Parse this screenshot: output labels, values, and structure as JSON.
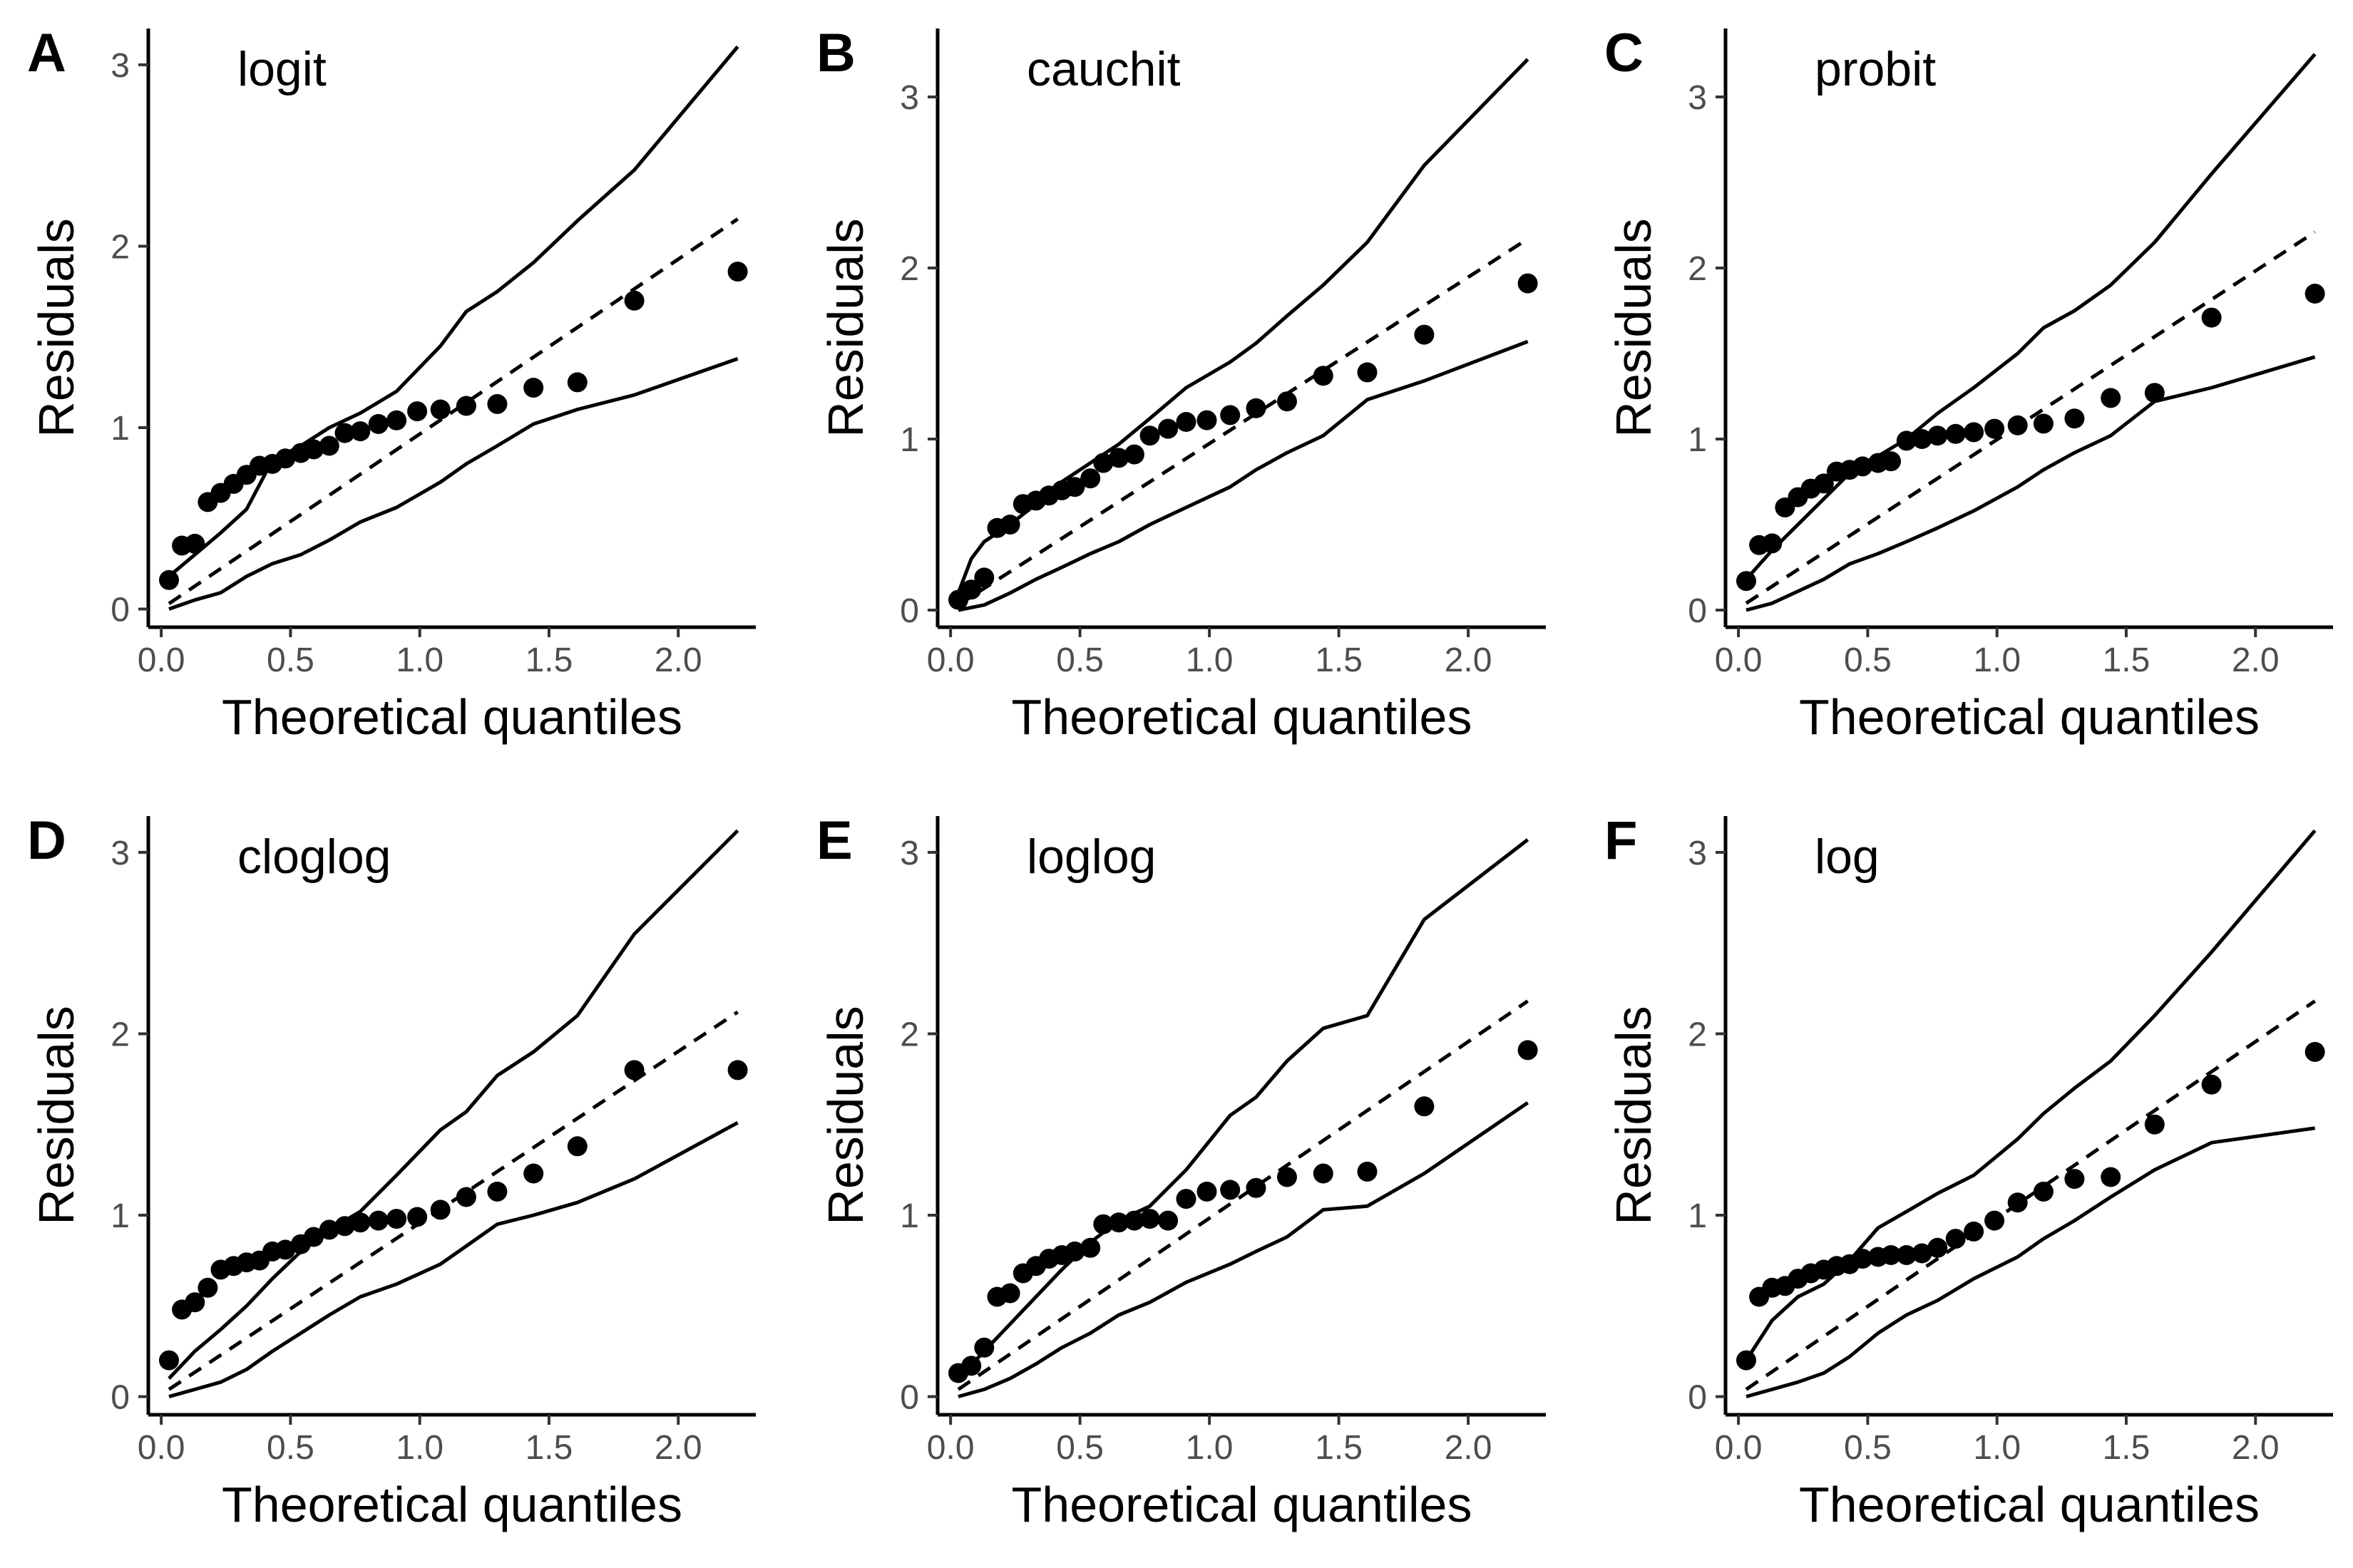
{
  "figure": {
    "xlabel": "Theoretical quantiles",
    "ylabel": "Residuals"
  },
  "chart_data": [
    {
      "type": "scatter",
      "panel": "A",
      "annotation": "logit",
      "xlabel": "Theoretical quantiles",
      "ylabel": "Residuals",
      "xlim": [
        -0.05,
        2.3
      ],
      "ylim": [
        -0.1,
        3.2
      ],
      "xticks": [
        "0.0",
        "0.5",
        "1.0",
        "1.5",
        "2.0"
      ],
      "yticks": [
        "0",
        "1",
        "2",
        "3"
      ],
      "grid": false,
      "points": {
        "x": [
          0.03,
          0.08,
          0.13,
          0.18,
          0.23,
          0.28,
          0.33,
          0.38,
          0.43,
          0.48,
          0.54,
          0.59,
          0.65,
          0.71,
          0.77,
          0.84,
          0.91,
          0.99,
          1.08,
          1.18,
          1.3,
          1.44,
          1.61,
          1.83,
          2.23
        ],
        "y": [
          0.16,
          0.35,
          0.36,
          0.59,
          0.64,
          0.69,
          0.74,
          0.79,
          0.8,
          0.83,
          0.86,
          0.88,
          0.9,
          0.97,
          0.98,
          1.02,
          1.04,
          1.09,
          1.1,
          1.12,
          1.13,
          1.22,
          1.25,
          1.7,
          1.86
        ]
      },
      "reference_line": {
        "x": [
          0.03,
          2.23
        ],
        "y": [
          0.03,
          2.15
        ]
      },
      "upper_envelope": {
        "x": [
          0.03,
          0.13,
          0.23,
          0.33,
          0.43,
          0.54,
          0.65,
          0.77,
          0.91,
          1.08,
          1.18,
          1.3,
          1.44,
          1.61,
          1.83,
          2.23
        ],
        "y": [
          0.18,
          0.3,
          0.42,
          0.55,
          0.82,
          0.9,
          1.0,
          1.08,
          1.2,
          1.45,
          1.64,
          1.75,
          1.91,
          2.14,
          2.42,
          3.1
        ]
      },
      "lower_envelope": {
        "x": [
          0.03,
          0.13,
          0.23,
          0.33,
          0.43,
          0.54,
          0.65,
          0.77,
          0.91,
          1.08,
          1.18,
          1.3,
          1.44,
          1.61,
          1.83,
          2.23
        ],
        "y": [
          0.0,
          0.05,
          0.09,
          0.18,
          0.25,
          0.3,
          0.38,
          0.48,
          0.56,
          0.7,
          0.8,
          0.9,
          1.02,
          1.1,
          1.18,
          1.38
        ]
      }
    },
    {
      "type": "scatter",
      "panel": "B",
      "annotation": "cauchit",
      "xlabel": "Theoretical quantiles",
      "ylabel": "Residuals",
      "xlim": [
        -0.05,
        2.3
      ],
      "ylim": [
        -0.1,
        3.4
      ],
      "xticks": [
        "0.0",
        "0.5",
        "1.0",
        "1.5",
        "2.0"
      ],
      "yticks": [
        "0",
        "1",
        "2",
        "3"
      ],
      "grid": false,
      "points": {
        "x": [
          0.03,
          0.08,
          0.13,
          0.18,
          0.23,
          0.28,
          0.33,
          0.38,
          0.43,
          0.48,
          0.54,
          0.59,
          0.65,
          0.71,
          0.77,
          0.84,
          0.91,
          0.99,
          1.08,
          1.18,
          1.3,
          1.44,
          1.61,
          1.83,
          2.23
        ],
        "y": [
          0.06,
          0.12,
          0.19,
          0.48,
          0.5,
          0.62,
          0.64,
          0.67,
          0.7,
          0.72,
          0.77,
          0.86,
          0.89,
          0.91,
          1.02,
          1.06,
          1.1,
          1.11,
          1.14,
          1.18,
          1.22,
          1.37,
          1.39,
          1.61,
          1.91
        ]
      },
      "reference_line": {
        "x": [
          0.03,
          2.23
        ],
        "y": [
          0.03,
          2.17
        ]
      },
      "upper_envelope": {
        "x": [
          0.03,
          0.08,
          0.13,
          0.23,
          0.33,
          0.43,
          0.54,
          0.65,
          0.77,
          0.91,
          1.08,
          1.18,
          1.3,
          1.44,
          1.61,
          1.83,
          2.23
        ],
        "y": [
          0.1,
          0.3,
          0.4,
          0.5,
          0.62,
          0.75,
          0.86,
          0.97,
          1.12,
          1.3,
          1.45,
          1.56,
          1.72,
          1.9,
          2.15,
          2.6,
          3.22
        ]
      },
      "lower_envelope": {
        "x": [
          0.03,
          0.13,
          0.23,
          0.33,
          0.43,
          0.54,
          0.65,
          0.77,
          0.91,
          1.08,
          1.18,
          1.3,
          1.44,
          1.61,
          1.83,
          2.23
        ],
        "y": [
          0.0,
          0.03,
          0.1,
          0.18,
          0.25,
          0.33,
          0.4,
          0.5,
          0.6,
          0.72,
          0.82,
          0.92,
          1.02,
          1.23,
          1.34,
          1.57
        ]
      }
    },
    {
      "type": "scatter",
      "panel": "C",
      "annotation": "probit",
      "xlabel": "Theoretical quantiles",
      "ylabel": "Residuals",
      "xlim": [
        -0.05,
        2.3
      ],
      "ylim": [
        -0.1,
        3.4
      ],
      "xticks": [
        "0.0",
        "0.5",
        "1.0",
        "1.5",
        "2.0"
      ],
      "yticks": [
        "0",
        "1",
        "2",
        "3"
      ],
      "grid": false,
      "points": {
        "x": [
          0.03,
          0.08,
          0.13,
          0.18,
          0.23,
          0.28,
          0.33,
          0.38,
          0.43,
          0.48,
          0.54,
          0.59,
          0.65,
          0.71,
          0.77,
          0.84,
          0.91,
          0.99,
          1.08,
          1.18,
          1.3,
          1.44,
          1.61,
          1.83,
          2.23
        ],
        "y": [
          0.17,
          0.38,
          0.39,
          0.6,
          0.66,
          0.71,
          0.74,
          0.81,
          0.82,
          0.84,
          0.86,
          0.87,
          0.99,
          1.0,
          1.02,
          1.03,
          1.04,
          1.06,
          1.08,
          1.09,
          1.12,
          1.24,
          1.27,
          1.71,
          1.85
        ]
      },
      "reference_line": {
        "x": [
          0.03,
          2.23
        ],
        "y": [
          0.04,
          2.21
        ]
      },
      "upper_envelope": {
        "x": [
          0.03,
          0.13,
          0.23,
          0.33,
          0.43,
          0.54,
          0.65,
          0.77,
          0.91,
          1.08,
          1.18,
          1.3,
          1.44,
          1.61,
          1.83,
          2.23
        ],
        "y": [
          0.18,
          0.35,
          0.5,
          0.65,
          0.8,
          0.9,
          1.0,
          1.15,
          1.3,
          1.5,
          1.65,
          1.75,
          1.9,
          2.15,
          2.55,
          3.25
        ]
      },
      "lower_envelope": {
        "x": [
          0.03,
          0.13,
          0.23,
          0.33,
          0.43,
          0.54,
          0.65,
          0.77,
          0.91,
          1.08,
          1.18,
          1.3,
          1.44,
          1.61,
          1.83,
          2.23
        ],
        "y": [
          0.0,
          0.04,
          0.11,
          0.18,
          0.27,
          0.33,
          0.4,
          0.48,
          0.58,
          0.72,
          0.82,
          0.92,
          1.02,
          1.22,
          1.3,
          1.48
        ]
      }
    },
    {
      "type": "scatter",
      "panel": "D",
      "annotation": "cloglog",
      "xlabel": "Theoretical quantiles",
      "ylabel": "Residuals",
      "xlim": [
        -0.05,
        2.3
      ],
      "ylim": [
        -0.1,
        3.2
      ],
      "xticks": [
        "0.0",
        "0.5",
        "1.0",
        "1.5",
        "2.0"
      ],
      "yticks": [
        "0",
        "1",
        "2",
        "3"
      ],
      "grid": false,
      "points": {
        "x": [
          0.03,
          0.08,
          0.13,
          0.18,
          0.23,
          0.28,
          0.33,
          0.38,
          0.43,
          0.48,
          0.54,
          0.59,
          0.65,
          0.71,
          0.77,
          0.84,
          0.91,
          0.99,
          1.08,
          1.18,
          1.3,
          1.44,
          1.61,
          1.83,
          2.23
        ],
        "y": [
          0.2,
          0.48,
          0.52,
          0.6,
          0.7,
          0.72,
          0.74,
          0.75,
          0.8,
          0.81,
          0.84,
          0.88,
          0.92,
          0.94,
          0.96,
          0.97,
          0.98,
          0.99,
          1.03,
          1.1,
          1.13,
          1.23,
          1.38,
          1.8,
          1.8
        ]
      },
      "reference_line": {
        "x": [
          0.03,
          2.23
        ],
        "y": [
          0.04,
          2.12
        ]
      },
      "upper_envelope": {
        "x": [
          0.03,
          0.13,
          0.23,
          0.33,
          0.43,
          0.54,
          0.65,
          0.77,
          0.91,
          1.08,
          1.18,
          1.3,
          1.44,
          1.61,
          1.83,
          2.23
        ],
        "y": [
          0.1,
          0.25,
          0.37,
          0.5,
          0.65,
          0.8,
          0.92,
          1.02,
          1.22,
          1.47,
          1.57,
          1.77,
          1.9,
          2.1,
          2.55,
          3.12
        ]
      },
      "lower_envelope": {
        "x": [
          0.03,
          0.13,
          0.23,
          0.33,
          0.43,
          0.54,
          0.65,
          0.77,
          0.91,
          1.08,
          1.18,
          1.3,
          1.44,
          1.61,
          1.83,
          2.23
        ],
        "y": [
          0.0,
          0.04,
          0.08,
          0.15,
          0.25,
          0.35,
          0.45,
          0.55,
          0.62,
          0.73,
          0.83,
          0.95,
          1.0,
          1.07,
          1.2,
          1.51
        ]
      }
    },
    {
      "type": "scatter",
      "panel": "E",
      "annotation": "loglog",
      "xlabel": "Theoretical quantiles",
      "ylabel": "Residuals",
      "xlim": [
        -0.05,
        2.3
      ],
      "ylim": [
        -0.1,
        3.2
      ],
      "xticks": [
        "0.0",
        "0.5",
        "1.0",
        "1.5",
        "2.0"
      ],
      "yticks": [
        "0",
        "1",
        "2",
        "3"
      ],
      "grid": false,
      "points": {
        "x": [
          0.03,
          0.08,
          0.13,
          0.18,
          0.23,
          0.28,
          0.33,
          0.38,
          0.43,
          0.48,
          0.54,
          0.59,
          0.65,
          0.71,
          0.77,
          0.84,
          0.91,
          0.99,
          1.08,
          1.18,
          1.3,
          1.44,
          1.61,
          1.83,
          2.23
        ],
        "y": [
          0.13,
          0.17,
          0.27,
          0.55,
          0.57,
          0.68,
          0.72,
          0.76,
          0.78,
          0.8,
          0.82,
          0.95,
          0.96,
          0.97,
          0.98,
          0.97,
          1.09,
          1.13,
          1.14,
          1.15,
          1.21,
          1.23,
          1.24,
          1.6,
          1.91
        ]
      },
      "reference_line": {
        "x": [
          0.03,
          2.23
        ],
        "y": [
          0.04,
          2.18
        ]
      },
      "upper_envelope": {
        "x": [
          0.03,
          0.13,
          0.23,
          0.33,
          0.43,
          0.54,
          0.65,
          0.77,
          0.91,
          1.08,
          1.18,
          1.3,
          1.44,
          1.61,
          1.83,
          2.23
        ],
        "y": [
          0.1,
          0.25,
          0.4,
          0.55,
          0.7,
          0.85,
          0.97,
          1.05,
          1.25,
          1.55,
          1.65,
          1.85,
          2.03,
          2.1,
          2.63,
          3.07
        ]
      },
      "lower_envelope": {
        "x": [
          0.03,
          0.13,
          0.23,
          0.33,
          0.43,
          0.54,
          0.65,
          0.77,
          0.91,
          1.08,
          1.18,
          1.3,
          1.44,
          1.61,
          1.83,
          2.23
        ],
        "y": [
          0.0,
          0.04,
          0.1,
          0.18,
          0.27,
          0.35,
          0.45,
          0.52,
          0.63,
          0.73,
          0.8,
          0.88,
          1.03,
          1.05,
          1.23,
          1.62
        ]
      }
    },
    {
      "type": "scatter",
      "panel": "F",
      "annotation": "log",
      "xlabel": "Theoretical quantiles",
      "ylabel": "Residuals",
      "xlim": [
        -0.05,
        2.3
      ],
      "ylim": [
        -0.1,
        3.2
      ],
      "xticks": [
        "0.0",
        "0.5",
        "1.0",
        "1.5",
        "2.0"
      ],
      "yticks": [
        "0",
        "1",
        "2",
        "3"
      ],
      "grid": false,
      "points": {
        "x": [
          0.03,
          0.08,
          0.13,
          0.18,
          0.23,
          0.28,
          0.33,
          0.38,
          0.43,
          0.48,
          0.54,
          0.59,
          0.65,
          0.71,
          0.77,
          0.84,
          0.91,
          0.99,
          1.08,
          1.18,
          1.3,
          1.44,
          1.61,
          1.83,
          2.23
        ],
        "y": [
          0.2,
          0.55,
          0.6,
          0.61,
          0.65,
          0.68,
          0.7,
          0.72,
          0.73,
          0.76,
          0.77,
          0.78,
          0.78,
          0.79,
          0.82,
          0.87,
          0.91,
          0.97,
          1.07,
          1.13,
          1.2,
          1.21,
          1.5,
          1.72,
          1.9
        ]
      },
      "reference_line": {
        "x": [
          0.03,
          2.23
        ],
        "y": [
          0.04,
          2.18
        ]
      },
      "upper_envelope": {
        "x": [
          0.03,
          0.13,
          0.23,
          0.33,
          0.43,
          0.54,
          0.65,
          0.77,
          0.91,
          1.08,
          1.18,
          1.3,
          1.44,
          1.61,
          1.83,
          2.23
        ],
        "y": [
          0.2,
          0.42,
          0.55,
          0.62,
          0.75,
          0.93,
          1.02,
          1.12,
          1.22,
          1.42,
          1.56,
          1.7,
          1.85,
          2.1,
          2.45,
          3.12
        ]
      },
      "lower_envelope": {
        "x": [
          0.03,
          0.13,
          0.23,
          0.33,
          0.43,
          0.54,
          0.65,
          0.77,
          0.91,
          1.08,
          1.18,
          1.3,
          1.44,
          1.61,
          1.83,
          2.23
        ],
        "y": [
          0.0,
          0.04,
          0.08,
          0.13,
          0.22,
          0.35,
          0.45,
          0.53,
          0.65,
          0.77,
          0.87,
          0.97,
          1.1,
          1.25,
          1.4,
          1.48
        ]
      }
    }
  ]
}
